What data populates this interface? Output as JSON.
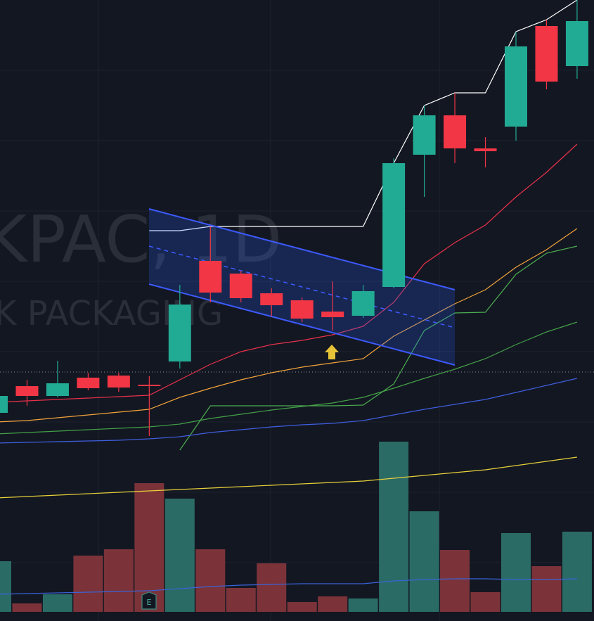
{
  "watermark": {
    "symbol": "KPAC, 1D",
    "name": "K PACKAGING"
  },
  "earnings_icon": "E",
  "chart_data": {
    "type": "candlestick",
    "ylim": [
      0,
      883
    ],
    "volume_lim": [
      0,
      870
    ],
    "up_color": "#22ab94",
    "down_color": "#f23645",
    "volume_up_color": "#2b6b66",
    "volume_down_color": "#7b3339",
    "open": [
      296,
      334,
      320,
      346,
      349,
      336,
      369,
      512,
      494,
      466,
      456,
      440,
      434,
      475,
      663,
      719,
      672,
      703,
      846,
      789
    ],
    "high": [
      323,
      343,
      370,
      353,
      353,
      348,
      478,
      561,
      498,
      473,
      460,
      483,
      478,
      658,
      733,
      751,
      688,
      838,
      855,
      883
    ],
    "low": [
      293,
      306,
      318,
      328,
      326,
      263,
      359,
      453,
      453,
      433,
      425,
      413,
      431,
      473,
      603,
      651,
      645,
      683,
      756,
      771
    ],
    "close": [
      320,
      320,
      338,
      331,
      332,
      334,
      450,
      467,
      459,
      449,
      430,
      432,
      469,
      651,
      719,
      672,
      668,
      817,
      767,
      853
    ],
    "volume": [
      72,
      12,
      25,
      80,
      89,
      183,
      161,
      89,
      34,
      69,
      14,
      22,
      19,
      242,
      143,
      88,
      28,
      112,
      65,
      114
    ],
    "series": [
      {
        "color": "#ffffff",
        "values": [
          null,
          null,
          null,
          null,
          null,
          555,
          555,
          561,
          561,
          561,
          561,
          561,
          561,
          651,
          733,
          751,
          751,
          838,
          855,
          883
        ]
      },
      {
        "color": "#e8314a",
        "values": [
          311,
          313,
          315,
          317,
          319,
          321,
          343,
          365,
          383,
          393,
          399,
          407,
          419,
          453,
          508,
          538,
          563,
          603,
          638,
          678
        ]
      },
      {
        "color": "#f2a33a",
        "values": [
          283,
          285,
          289,
          293,
          297,
          301,
          318,
          331,
          343,
          353,
          361,
          367,
          373,
          405,
          428,
          451,
          471,
          503,
          528,
          558
        ]
      },
      {
        "color": "#4caf50",
        "values": [
          null,
          null,
          null,
          null,
          null,
          null,
          243,
          306,
          306,
          306,
          306,
          306,
          307,
          337,
          413,
          438,
          439,
          493,
          523,
          533
        ]
      },
      {
        "color": "#43a047",
        "values": [
          266,
          268,
          270,
          272,
          274,
          276,
          280,
          288,
          294,
          300,
          305,
          310,
          318,
          331,
          345,
          358,
          373,
          393,
          411,
          425
        ]
      },
      {
        "color": "#3f5fe0",
        "values": [
          253,
          254,
          255,
          256,
          257,
          259,
          262,
          268,
          272,
          276,
          279,
          281,
          285,
          293,
          301,
          308,
          315,
          325,
          335,
          345
        ]
      },
      {
        "color": "#e6d03a",
        "values": [
          175,
          177,
          179,
          181,
          183,
          185,
          187,
          189,
          191,
          193,
          195,
          197,
          199,
          203,
          207,
          211,
          215,
          221,
          227,
          233
        ]
      }
    ],
    "volume_ma": {
      "color": "#3a63d8",
      "values": [
        25,
        26,
        27,
        28,
        29,
        30,
        33,
        36,
        38,
        39,
        40,
        40,
        40,
        44,
        46,
        47,
        47,
        46,
        46,
        47
      ]
    }
  }
}
